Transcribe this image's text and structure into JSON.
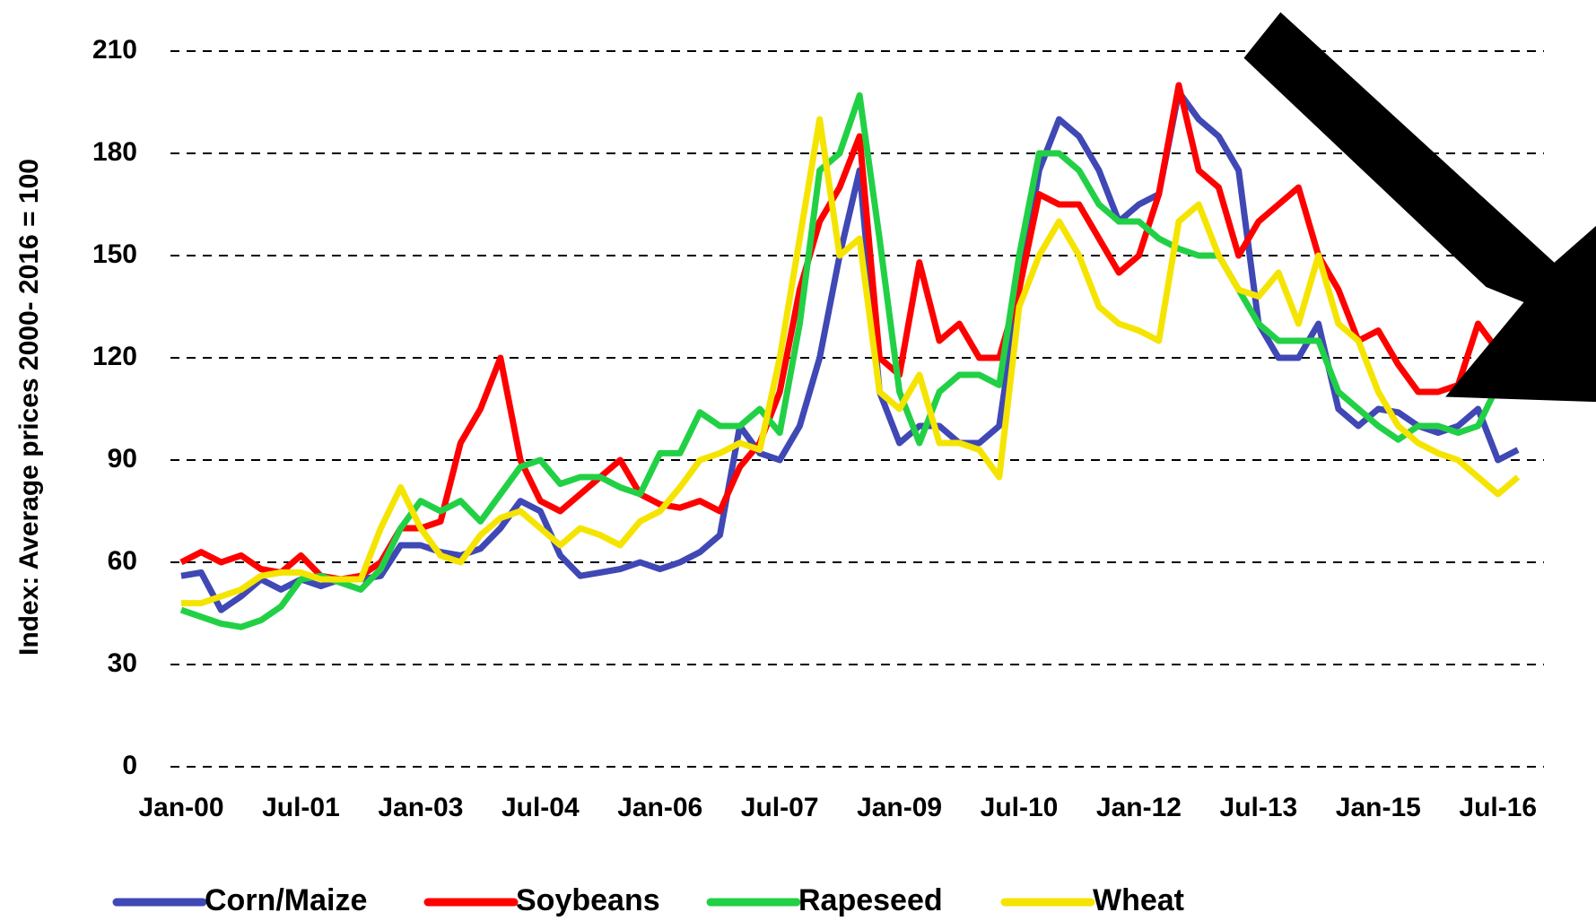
{
  "chart_data": {
    "type": "line",
    "ylabel": "Index: Average prices 2000- 2016 = 100",
    "categories": [
      "Jan-00",
      null,
      null,
      null,
      null,
      null,
      "Jul-01",
      null,
      null,
      null,
      null,
      null,
      "Jan-03",
      null,
      null,
      null,
      null,
      null,
      "Jul-04",
      null,
      null,
      null,
      null,
      null,
      "Jan-06",
      null,
      null,
      null,
      null,
      null,
      "Jul-07",
      null,
      null,
      null,
      null,
      null,
      "Jan-09",
      null,
      null,
      null,
      null,
      null,
      "Jul-10",
      null,
      null,
      null,
      null,
      null,
      "Jan-12",
      null,
      null,
      null,
      null,
      null,
      "Jul-13",
      null,
      null,
      null,
      null,
      null,
      "Jan-15",
      null,
      null,
      null,
      null,
      null,
      "Jul-16",
      null
    ],
    "series": [
      {
        "name": "Corn/Maize",
        "color": "#3f48b4",
        "values": [
          56,
          57,
          46,
          50,
          55,
          52,
          55,
          53,
          55,
          55,
          56,
          65,
          65,
          63,
          62,
          64,
          70,
          78,
          75,
          62,
          56,
          57,
          58,
          60,
          58,
          60,
          63,
          68,
          100,
          92,
          90,
          100,
          120,
          150,
          175,
          110,
          95,
          100,
          100,
          95,
          95,
          100,
          140,
          175,
          190,
          185,
          175,
          160,
          165,
          168,
          198,
          190,
          185,
          175,
          130,
          120,
          120,
          130,
          105,
          100,
          105,
          104,
          100,
          98,
          100,
          105,
          90,
          93
        ]
      },
      {
        "name": "Soybeans",
        "color": "#ff0000",
        "values": [
          60,
          63,
          60,
          62,
          58,
          57,
          62,
          56,
          55,
          56,
          60,
          70,
          70,
          72,
          95,
          105,
          120,
          90,
          78,
          75,
          80,
          85,
          90,
          80,
          77,
          76,
          78,
          75,
          88,
          95,
          110,
          140,
          160,
          170,
          185,
          120,
          115,
          148,
          125,
          130,
          120,
          120,
          140,
          168,
          165,
          165,
          155,
          145,
          150,
          168,
          200,
          175,
          170,
          150,
          160,
          165,
          170,
          150,
          140,
          125,
          128,
          118,
          110,
          110,
          112,
          130,
          122,
          120
        ]
      },
      {
        "name": "Rapeseed",
        "color": "#22d046",
        "values": [
          46,
          44,
          42,
          41,
          43,
          47,
          55,
          56,
          54,
          52,
          58,
          70,
          78,
          75,
          78,
          72,
          80,
          88,
          90,
          83,
          85,
          85,
          82,
          80,
          92,
          92,
          104,
          100,
          100,
          105,
          98,
          130,
          175,
          180,
          197,
          155,
          110,
          95,
          110,
          115,
          115,
          112,
          150,
          180,
          180,
          175,
          165,
          160,
          160,
          155,
          152,
          150,
          150,
          140,
          130,
          125,
          125,
          125,
          110,
          105,
          100,
          96,
          100,
          100,
          98,
          100,
          112,
          117
        ]
      },
      {
        "name": "Wheat",
        "color": "#f5e400",
        "values": [
          48,
          48,
          50,
          52,
          56,
          57,
          57,
          55,
          55,
          55,
          70,
          82,
          70,
          62,
          60,
          68,
          73,
          75,
          70,
          65,
          70,
          68,
          65,
          72,
          75,
          82,
          90,
          92,
          95,
          93,
          120,
          155,
          190,
          150,
          155,
          110,
          105,
          115,
          95,
          95,
          93,
          85,
          135,
          150,
          160,
          150,
          135,
          130,
          128,
          125,
          160,
          165,
          150,
          140,
          138,
          145,
          130,
          150,
          130,
          125,
          110,
          100,
          95,
          92,
          90,
          85,
          80,
          85
        ]
      }
    ],
    "ylim": [
      0,
      210
    ],
    "yticks": [
      0,
      30,
      60,
      90,
      120,
      150,
      180,
      210
    ],
    "grid": true,
    "legend": "bottom"
  }
}
